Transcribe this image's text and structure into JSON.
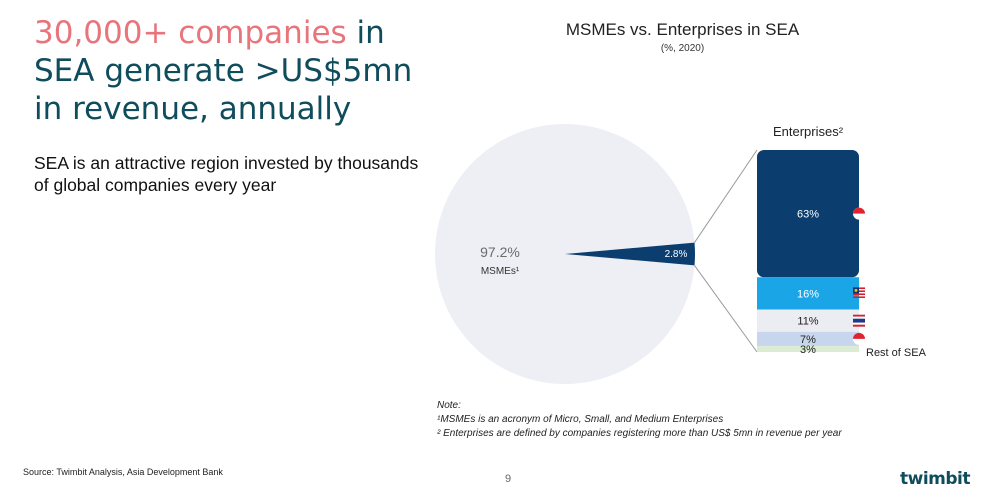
{
  "headline": {
    "highlight": "30,000+ companies",
    "rest_line1": " in",
    "rest_line2": "SEA generate >US$5mn",
    "rest_line3": "in revenue, annually"
  },
  "subtext": "SEA is an attractive region invested by thousands of global companies every year",
  "colors": {
    "headline": "#0f4c5c",
    "highlight": "#e8747c",
    "pie_msme": "#eeeef5",
    "pie_enterprise": "#0b3d6f",
    "seg_63": "#0b3d6f",
    "seg_16": "#1aa6e6",
    "seg_11": "#ececf3",
    "seg_7": "#c7d6ec",
    "seg_3": "#dcebd3"
  },
  "chart_data": [
    {
      "type": "pie",
      "title": "MSMEs vs. Enterprises in SEA",
      "subtitle": "(%, 2020)",
      "slices": [
        {
          "name": "MSMEs¹",
          "value": 97.2,
          "label": "97.2%"
        },
        {
          "name": "Enterprises",
          "value": 2.8,
          "label": "2.8%"
        }
      ]
    },
    {
      "type": "bar",
      "stacked": true,
      "title": "Enterprises²",
      "segments": [
        {
          "value": 63,
          "label": "63%",
          "flag": "singapore-flag-icon"
        },
        {
          "value": 16,
          "label": "16%",
          "flag": "malaysia-flag-icon"
        },
        {
          "value": 11,
          "label": "11%",
          "flag": "thailand-flag-icon"
        },
        {
          "value": 7,
          "label": "7%",
          "flag": "indonesia-flag-icon"
        },
        {
          "value": 3,
          "label": "3%",
          "annotation": "Rest of SEA"
        }
      ]
    }
  ],
  "notes": {
    "heading": "Note:",
    "note1": "¹MSMEs is an acronym of Micro, Small, and Medium Enterprises",
    "note2": "² Enterprises are defined by companies registering more than US$ 5mn in revenue per year"
  },
  "footer": {
    "source": "Source: Twimbit Analysis, Asia Development Bank",
    "page": "9",
    "logo": "twimbit"
  }
}
